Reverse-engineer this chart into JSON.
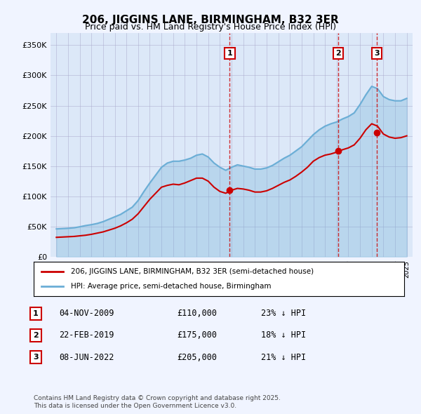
{
  "title": "206, JIGGINS LANE, BIRMINGHAM, B32 3ER",
  "subtitle": "Price paid vs. HM Land Registry's House Price Index (HPI)",
  "background_color": "#f0f4ff",
  "plot_background": "#dce8f8",
  "ylim": [
    0,
    370000
  ],
  "yticks": [
    0,
    50000,
    100000,
    150000,
    200000,
    250000,
    300000,
    350000
  ],
  "ytick_labels": [
    "£0",
    "£50K",
    "£100K",
    "£150K",
    "£200K",
    "£250K",
    "£300K",
    "£350K"
  ],
  "xlim_start": 1994.5,
  "xlim_end": 2025.5,
  "legend_line1": "206, JIGGINS LANE, BIRMINGHAM, B32 3ER (semi-detached house)",
  "legend_line2": "HPI: Average price, semi-detached house, Birmingham",
  "sale_points": [
    {
      "label": "1",
      "year": 2009.84,
      "price": 110000,
      "date": "04-NOV-2009",
      "pct": "23%",
      "dir": "↓"
    },
    {
      "label": "2",
      "year": 2019.14,
      "price": 175000,
      "date": "22-FEB-2019",
      "pct": "18%",
      "dir": "↓"
    },
    {
      "label": "3",
      "year": 2022.44,
      "price": 205000,
      "date": "08-JUN-2022",
      "pct": "21%",
      "dir": "↓"
    }
  ],
  "footer": "Contains HM Land Registry data © Crown copyright and database right 2025.\nThis data is licensed under the Open Government Licence v3.0.",
  "hpi_color": "#6baed6",
  "price_color": "#cc0000",
  "vline_color": "#cc0000",
  "grid_color": "#aaaacc",
  "hpi_data_x": [
    1995,
    1995.5,
    1996,
    1996.5,
    1997,
    1997.5,
    1998,
    1998.5,
    1999,
    1999.5,
    2000,
    2000.5,
    2001,
    2001.5,
    2002,
    2002.5,
    2003,
    2003.5,
    2004,
    2004.5,
    2005,
    2005.5,
    2006,
    2006.5,
    2007,
    2007.5,
    2008,
    2008.5,
    2009,
    2009.5,
    2010,
    2010.5,
    2011,
    2011.5,
    2012,
    2012.5,
    2013,
    2013.5,
    2014,
    2014.5,
    2015,
    2015.5,
    2016,
    2016.5,
    2017,
    2017.5,
    2018,
    2018.5,
    2019,
    2019.5,
    2020,
    2020.5,
    2021,
    2021.5,
    2022,
    2022.5,
    2023,
    2023.5,
    2024,
    2024.5,
    2025
  ],
  "hpi_data_y": [
    46000,
    46500,
    47000,
    47800,
    49500,
    51500,
    53000,
    55000,
    58000,
    62000,
    66000,
    70000,
    76000,
    82000,
    93000,
    108000,
    122000,
    135000,
    148000,
    155000,
    158000,
    158000,
    160000,
    163000,
    168000,
    170000,
    165000,
    155000,
    148000,
    143000,
    148000,
    152000,
    150000,
    148000,
    145000,
    145000,
    147000,
    151000,
    157000,
    163000,
    168000,
    175000,
    182000,
    192000,
    202000,
    210000,
    216000,
    220000,
    223000,
    228000,
    232000,
    238000,
    252000,
    268000,
    282000,
    278000,
    265000,
    260000,
    258000,
    258000,
    262000
  ],
  "price_data_x": [
    1995,
    1995.5,
    1996,
    1996.5,
    1997,
    1997.5,
    1998,
    1998.5,
    1999,
    1999.5,
    2000,
    2000.5,
    2001,
    2001.5,
    2002,
    2002.5,
    2003,
    2003.5,
    2004,
    2004.5,
    2005,
    2005.5,
    2006,
    2006.5,
    2007,
    2007.5,
    2008,
    2008.5,
    2009,
    2009.5,
    2010,
    2010.5,
    2011,
    2011.5,
    2012,
    2012.5,
    2013,
    2013.5,
    2014,
    2014.5,
    2015,
    2015.5,
    2016,
    2016.5,
    2017,
    2017.5,
    2018,
    2018.5,
    2019,
    2019.5,
    2020,
    2020.5,
    2021,
    2021.5,
    2022,
    2022.5,
    2023,
    2023.5,
    2024,
    2024.5,
    2025
  ],
  "price_data_y": [
    32000,
    32500,
    33000,
    33500,
    34500,
    35500,
    37000,
    39000,
    41000,
    44000,
    47000,
    51000,
    56000,
    62000,
    71000,
    83000,
    95000,
    105000,
    115000,
    118000,
    120000,
    119000,
    122000,
    126000,
    130000,
    130000,
    125000,
    115000,
    108000,
    105000,
    110000,
    113000,
    112000,
    110000,
    107000,
    107000,
    109000,
    113000,
    118000,
    123000,
    127000,
    133000,
    140000,
    148000,
    158000,
    164000,
    168000,
    170000,
    173000,
    177000,
    180000,
    185000,
    196000,
    210000,
    220000,
    216000,
    203000,
    198000,
    196000,
    197000,
    200000
  ]
}
